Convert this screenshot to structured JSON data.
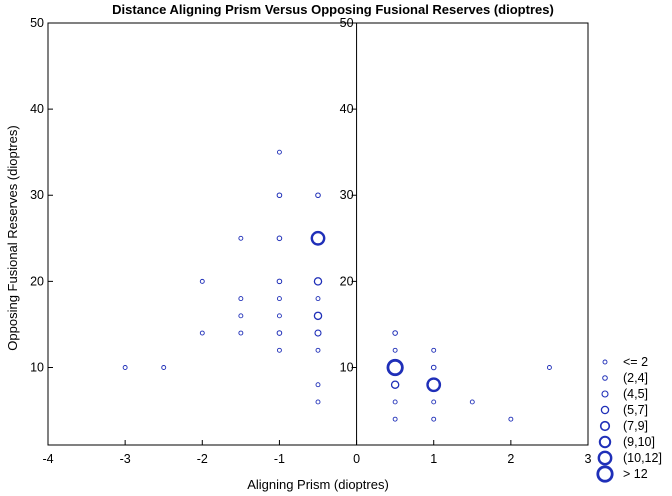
{
  "chart_data": {
    "type": "scatter",
    "title": "Distance Aligning Prism Versus Opposing Fusional Reserves (dioptres)",
    "xlabel": "Aligning Prism (dioptres)",
    "ylabel": "Opposing Fusional Reserves (dioptres)",
    "xlim": [
      -4,
      3
    ],
    "ylim": [
      1,
      50
    ],
    "x_ticks": [
      -4,
      -3,
      -2,
      -1,
      0,
      1,
      2,
      3
    ],
    "y_ticks": [
      10,
      20,
      30,
      40,
      50
    ],
    "y_ticks_right_panel": [
      10,
      20,
      30,
      40,
      50
    ],
    "panel_divider_x": 0,
    "grid": false,
    "marker_color": "#1f2fb8",
    "legend_position": "right",
    "legend": [
      {
        "label": "<= 2",
        "size_class": 1
      },
      {
        "label": "(2,4]",
        "size_class": 2
      },
      {
        "label": "(4,5]",
        "size_class": 3
      },
      {
        "label": "(5,7]",
        "size_class": 4
      },
      {
        "label": "(7,9]",
        "size_class": 5
      },
      {
        "label": "(9,10]",
        "size_class": 6
      },
      {
        "label": "(10,12]",
        "size_class": 7
      },
      {
        "label": "> 12",
        "size_class": 8
      }
    ],
    "points": [
      {
        "x": -3,
        "y": 10,
        "size_class": 1
      },
      {
        "x": -2.5,
        "y": 10,
        "size_class": 1
      },
      {
        "x": -2,
        "y": 20,
        "size_class": 1
      },
      {
        "x": -2,
        "y": 14,
        "size_class": 1
      },
      {
        "x": -1.5,
        "y": 25,
        "size_class": 1
      },
      {
        "x": -1.5,
        "y": 18,
        "size_class": 1
      },
      {
        "x": -1.5,
        "y": 16,
        "size_class": 1
      },
      {
        "x": -1.5,
        "y": 14,
        "size_class": 1
      },
      {
        "x": -1,
        "y": 35,
        "size_class": 1
      },
      {
        "x": -1,
        "y": 30,
        "size_class": 2
      },
      {
        "x": -1,
        "y": 25,
        "size_class": 2
      },
      {
        "x": -1,
        "y": 20,
        "size_class": 2
      },
      {
        "x": -1,
        "y": 18,
        "size_class": 1
      },
      {
        "x": -1,
        "y": 16,
        "size_class": 1
      },
      {
        "x": -1,
        "y": 14,
        "size_class": 2
      },
      {
        "x": -1,
        "y": 12,
        "size_class": 1
      },
      {
        "x": -0.5,
        "y": 30,
        "size_class": 2
      },
      {
        "x": -0.5,
        "y": 25,
        "size_class": 7
      },
      {
        "x": -0.5,
        "y": 20,
        "size_class": 4
      },
      {
        "x": -0.5,
        "y": 18,
        "size_class": 1
      },
      {
        "x": -0.5,
        "y": 16,
        "size_class": 4
      },
      {
        "x": -0.5,
        "y": 14,
        "size_class": 3
      },
      {
        "x": -0.5,
        "y": 12,
        "size_class": 1
      },
      {
        "x": -0.5,
        "y": 8,
        "size_class": 1
      },
      {
        "x": -0.5,
        "y": 6,
        "size_class": 1
      },
      {
        "x": 0.5,
        "y": 14,
        "size_class": 2
      },
      {
        "x": 0.5,
        "y": 12,
        "size_class": 1
      },
      {
        "x": 0.5,
        "y": 10,
        "size_class": 8
      },
      {
        "x": 0.5,
        "y": 8,
        "size_class": 4
      },
      {
        "x": 0.5,
        "y": 6,
        "size_class": 1
      },
      {
        "x": 0.5,
        "y": 4,
        "size_class": 1
      },
      {
        "x": 1,
        "y": 12,
        "size_class": 1
      },
      {
        "x": 1,
        "y": 10,
        "size_class": 2
      },
      {
        "x": 1,
        "y": 8,
        "size_class": 7
      },
      {
        "x": 1,
        "y": 6,
        "size_class": 1
      },
      {
        "x": 1,
        "y": 4,
        "size_class": 1
      },
      {
        "x": 1.5,
        "y": 6,
        "size_class": 1
      },
      {
        "x": 2,
        "y": 4,
        "size_class": 1
      },
      {
        "x": 2.5,
        "y": 10,
        "size_class": 1
      }
    ]
  }
}
